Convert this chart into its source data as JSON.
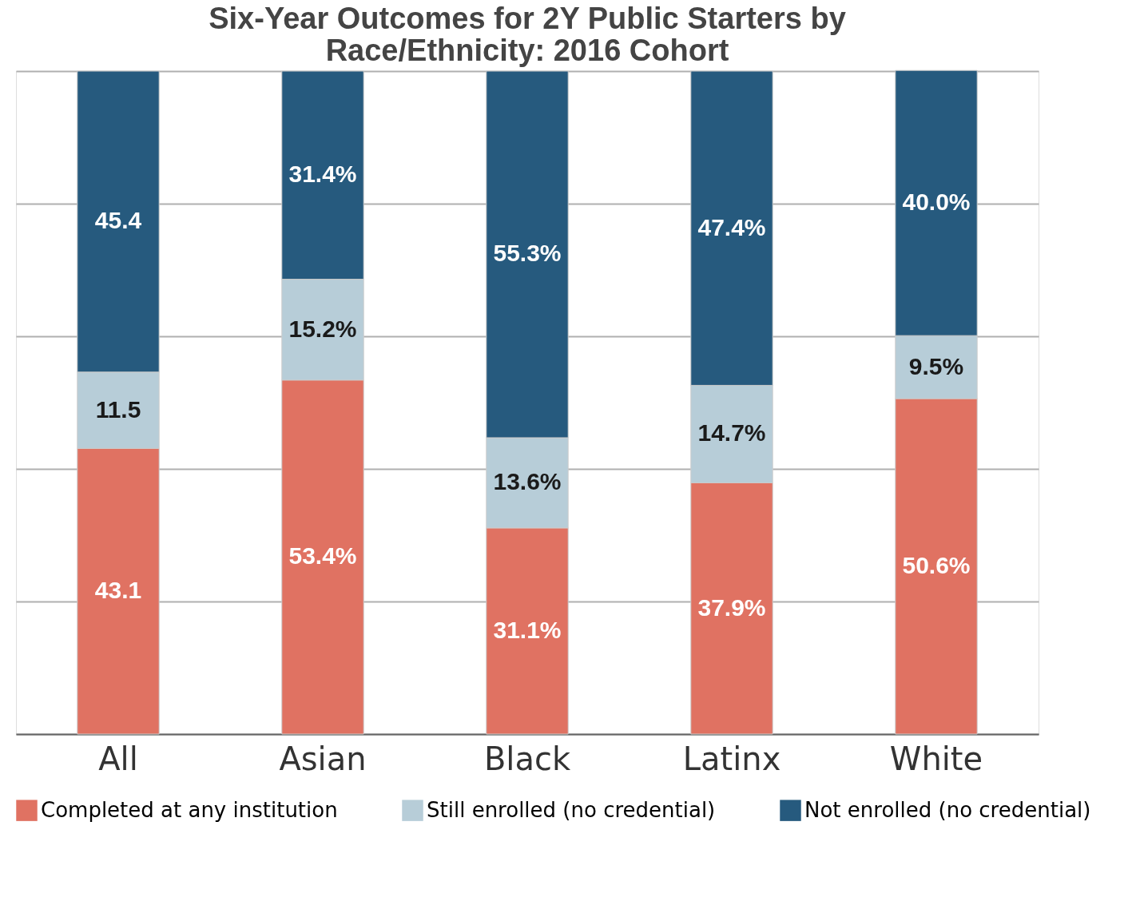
{
  "chart_data": {
    "type": "bar",
    "title": "Six-Year Outcomes for 2Y Public Starters by Race/Ethnicity: 2016 Cohort",
    "categories": [
      "All",
      "Asian",
      "Black",
      "Latinx",
      "White"
    ],
    "stacked": true,
    "series": [
      {
        "name": "Completed at any institution",
        "color": "#e07262",
        "values": [
          43.1,
          53.4,
          31.1,
          37.9,
          50.6
        ],
        "value_labels": [
          "43.1",
          "53.4%",
          "31.1%",
          "37.9%",
          "50.6%"
        ]
      },
      {
        "name": "Still enrolled (no credential)",
        "color": "#b7cdd8",
        "values": [
          11.5,
          15.2,
          13.6,
          14.7,
          9.5
        ],
        "value_labels": [
          "11.5",
          "15.2%",
          "13.6%",
          "14.7%",
          "9.5%"
        ]
      },
      {
        "name": "Not enrolled (no credential)",
        "color": "#265a7e",
        "values": [
          45.4,
          31.4,
          55.3,
          47.4,
          40.0
        ],
        "value_labels": [
          "45.4",
          "31.4%",
          "55.3%",
          "47.4%",
          "40.0%"
        ]
      }
    ],
    "ylim": [
      0,
      100
    ],
    "yticks": [
      {
        "value": 0,
        "label": null
      },
      {
        "value": 20,
        "label": null
      },
      {
        "value": 40,
        "label": null
      },
      {
        "value": 60,
        "label": null
      },
      {
        "value": 80,
        "label": null
      },
      {
        "value": 100,
        "label": null
      }
    ],
    "tick_labels": "x",
    "grid": "y",
    "legend": "bottom"
  }
}
